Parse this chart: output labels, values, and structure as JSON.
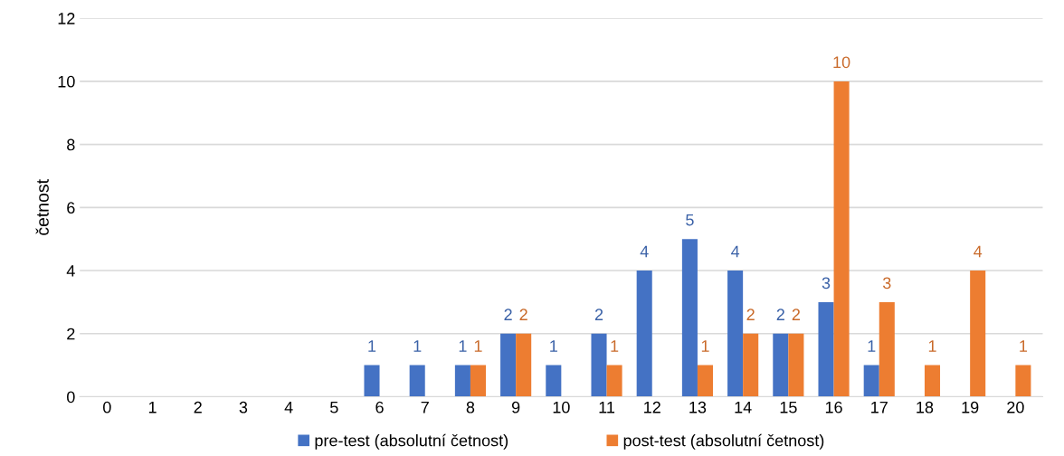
{
  "chart_data": {
    "type": "bar",
    "ylabel": "četnost",
    "categories": [
      "0",
      "1",
      "2",
      "3",
      "4",
      "5",
      "6",
      "7",
      "8",
      "9",
      "10",
      "11",
      "12",
      "13",
      "14",
      "15",
      "16",
      "17",
      "18",
      "19",
      "20"
    ],
    "series": [
      {
        "name": "pre-test (absolutní četnost)",
        "color": "#4472c4",
        "values": [
          null,
          null,
          null,
          null,
          null,
          null,
          1,
          1,
          1,
          2,
          1,
          2,
          4,
          5,
          4,
          2,
          3,
          1,
          null,
          null,
          null
        ]
      },
      {
        "name": "post-test (absolutní četnost)",
        "color": "#ed7d31",
        "values": [
          null,
          null,
          null,
          null,
          null,
          null,
          null,
          null,
          1,
          2,
          null,
          1,
          null,
          1,
          2,
          2,
          10,
          3,
          1,
          4,
          1
        ]
      }
    ],
    "ylim": [
      0,
      12
    ],
    "yticks": [
      0,
      2,
      4,
      6,
      8,
      10,
      12
    ],
    "grid": "y",
    "legend": "bottom",
    "data_labels": true
  }
}
